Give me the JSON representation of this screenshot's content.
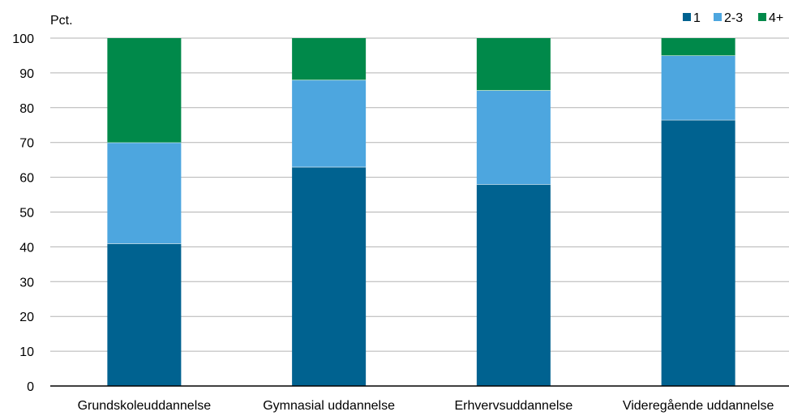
{
  "chart_data": {
    "type": "bar",
    "stacked": true,
    "ylabel": "Pct.",
    "ylim": [
      0,
      100
    ],
    "yticks": [
      0,
      10,
      20,
      30,
      40,
      50,
      60,
      70,
      80,
      90,
      100
    ],
    "grid": true,
    "legend_position": "top-right",
    "categories": [
      "Grundskoleuddannelse",
      "Gymnasial uddannelse",
      "Erhvervsuddannelse",
      "Videregående uddannelse"
    ],
    "series": [
      {
        "name": "1",
        "color": "#006290",
        "values": [
          41,
          63,
          58,
          76.5
        ]
      },
      {
        "name": "2-3",
        "color": "#4da6df",
        "values": [
          29,
          25,
          27,
          18.5
        ]
      },
      {
        "name": "4+",
        "color": "#00894a",
        "values": [
          30,
          12,
          15,
          5
        ]
      }
    ]
  }
}
